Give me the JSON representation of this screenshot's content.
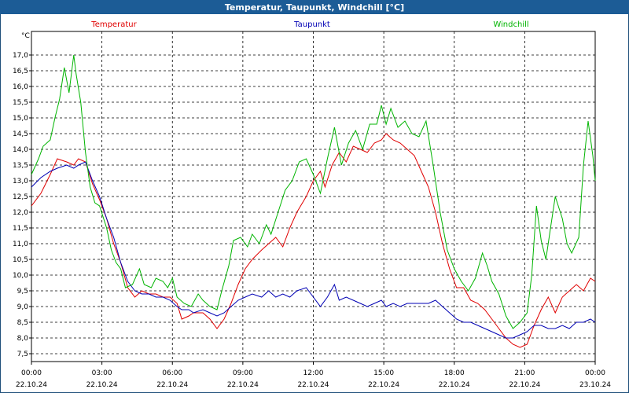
{
  "window": {
    "title": "Temperatur, Taupunkt, Windchill [°C]"
  },
  "chart_data": {
    "type": "line",
    "title": "Temperatur, Taupunkt, Windchill [°C]",
    "ylabel": "°C",
    "ylim": [
      7.25,
      17.75
    ],
    "xlim": [
      0,
      24
    ],
    "grid": true,
    "legend_position": "top",
    "y_ticks": [
      "7,5",
      "8,0",
      "8,5",
      "9,0",
      "9,5",
      "10,0",
      "10,5",
      "11,0",
      "11,5",
      "12,0",
      "12,5",
      "13,0",
      "13,5",
      "14,0",
      "14,5",
      "15,0",
      "15,5",
      "16,0",
      "16,5",
      "17,0"
    ],
    "x_ticks": [
      {
        "h": 0,
        "time": "00:00",
        "date": "22.10.24"
      },
      {
        "h": 3,
        "time": "03:00",
        "date": "22.10.24"
      },
      {
        "h": 6,
        "time": "06:00",
        "date": "22.10.24"
      },
      {
        "h": 9,
        "time": "09:00",
        "date": "22.10.24"
      },
      {
        "h": 12,
        "time": "12:00",
        "date": "22.10.24"
      },
      {
        "h": 15,
        "time": "15:00",
        "date": "22.10.24"
      },
      {
        "h": 18,
        "time": "18:00",
        "date": "22.10.24"
      },
      {
        "h": 21,
        "time": "21:00",
        "date": "22.10.24"
      },
      {
        "h": 24,
        "time": "00:00",
        "date": "23.10.24"
      }
    ],
    "series": [
      {
        "name": "Temperatur",
        "color": "#e00000",
        "points": [
          [
            0,
            12.2
          ],
          [
            0.4,
            12.6
          ],
          [
            0.8,
            13.2
          ],
          [
            1.1,
            13.7
          ],
          [
            1.5,
            13.6
          ],
          [
            1.8,
            13.5
          ],
          [
            2.0,
            13.7
          ],
          [
            2.3,
            13.6
          ],
          [
            2.6,
            12.9
          ],
          [
            2.9,
            12.4
          ],
          [
            3.2,
            11.8
          ],
          [
            3.5,
            11.0
          ],
          [
            3.8,
            10.4
          ],
          [
            4.1,
            9.6
          ],
          [
            4.4,
            9.3
          ],
          [
            4.7,
            9.5
          ],
          [
            5.0,
            9.4
          ],
          [
            5.3,
            9.4
          ],
          [
            5.6,
            9.3
          ],
          [
            5.9,
            9.3
          ],
          [
            6.2,
            9.1
          ],
          [
            6.4,
            8.6
          ],
          [
            6.7,
            8.7
          ],
          [
            6.9,
            8.8
          ],
          [
            7.3,
            8.8
          ],
          [
            7.6,
            8.6
          ],
          [
            7.9,
            8.3
          ],
          [
            8.2,
            8.6
          ],
          [
            8.5,
            9.1
          ],
          [
            8.8,
            9.7
          ],
          [
            9.1,
            10.2
          ],
          [
            9.4,
            10.5
          ],
          [
            9.8,
            10.8
          ],
          [
            10.1,
            11.0
          ],
          [
            10.4,
            11.2
          ],
          [
            10.7,
            10.9
          ],
          [
            11.0,
            11.5
          ],
          [
            11.3,
            12.0
          ],
          [
            11.7,
            12.5
          ],
          [
            12.0,
            13.0
          ],
          [
            12.3,
            13.3
          ],
          [
            12.5,
            12.8
          ],
          [
            12.8,
            13.5
          ],
          [
            13.1,
            13.9
          ],
          [
            13.4,
            13.6
          ],
          [
            13.7,
            14.1
          ],
          [
            14.0,
            14.0
          ],
          [
            14.3,
            13.9
          ],
          [
            14.6,
            14.2
          ],
          [
            14.9,
            14.3
          ],
          [
            15.1,
            14.5
          ],
          [
            15.4,
            14.3
          ],
          [
            15.7,
            14.2
          ],
          [
            16.0,
            14.0
          ],
          [
            16.3,
            13.8
          ],
          [
            16.6,
            13.3
          ],
          [
            16.9,
            12.8
          ],
          [
            17.2,
            12.0
          ],
          [
            17.5,
            11.0
          ],
          [
            17.8,
            10.2
          ],
          [
            18.1,
            9.6
          ],
          [
            18.4,
            9.6
          ],
          [
            18.7,
            9.2
          ],
          [
            19.0,
            9.1
          ],
          [
            19.3,
            8.9
          ],
          [
            19.6,
            8.6
          ],
          [
            19.9,
            8.3
          ],
          [
            20.2,
            8.0
          ],
          [
            20.5,
            7.8
          ],
          [
            20.8,
            7.7
          ],
          [
            21.1,
            7.8
          ],
          [
            21.4,
            8.4
          ],
          [
            21.7,
            8.9
          ],
          [
            22.0,
            9.3
          ],
          [
            22.3,
            8.8
          ],
          [
            22.6,
            9.3
          ],
          [
            22.9,
            9.5
          ],
          [
            23.2,
            9.7
          ],
          [
            23.5,
            9.5
          ],
          [
            23.8,
            9.9
          ],
          [
            24.0,
            9.8
          ]
        ]
      },
      {
        "name": "Taupunkt",
        "color": "#0000b4",
        "points": [
          [
            0,
            12.8
          ],
          [
            0.4,
            13.1
          ],
          [
            0.8,
            13.3
          ],
          [
            1.1,
            13.4
          ],
          [
            1.5,
            13.5
          ],
          [
            1.8,
            13.4
          ],
          [
            2.0,
            13.5
          ],
          [
            2.3,
            13.6
          ],
          [
            2.6,
            13.0
          ],
          [
            2.9,
            12.5
          ],
          [
            3.2,
            11.8
          ],
          [
            3.5,
            11.2
          ],
          [
            3.8,
            10.4
          ],
          [
            4.1,
            9.8
          ],
          [
            4.4,
            9.5
          ],
          [
            4.7,
            9.4
          ],
          [
            5.0,
            9.4
          ],
          [
            5.3,
            9.3
          ],
          [
            5.6,
            9.3
          ],
          [
            5.9,
            9.2
          ],
          [
            6.2,
            9.0
          ],
          [
            6.4,
            8.9
          ],
          [
            6.7,
            8.9
          ],
          [
            6.9,
            8.8
          ],
          [
            7.3,
            8.9
          ],
          [
            7.6,
            8.8
          ],
          [
            7.9,
            8.7
          ],
          [
            8.2,
            8.8
          ],
          [
            8.5,
            9.0
          ],
          [
            8.8,
            9.2
          ],
          [
            9.1,
            9.3
          ],
          [
            9.4,
            9.4
          ],
          [
            9.8,
            9.3
          ],
          [
            10.1,
            9.5
          ],
          [
            10.4,
            9.3
          ],
          [
            10.7,
            9.4
          ],
          [
            11.0,
            9.3
          ],
          [
            11.3,
            9.5
          ],
          [
            11.7,
            9.6
          ],
          [
            12.0,
            9.3
          ],
          [
            12.3,
            9.0
          ],
          [
            12.6,
            9.3
          ],
          [
            12.9,
            9.7
          ],
          [
            13.1,
            9.2
          ],
          [
            13.4,
            9.3
          ],
          [
            13.7,
            9.2
          ],
          [
            14.0,
            9.1
          ],
          [
            14.3,
            9.0
          ],
          [
            14.6,
            9.1
          ],
          [
            14.9,
            9.2
          ],
          [
            15.1,
            9.0
          ],
          [
            15.4,
            9.1
          ],
          [
            15.7,
            9.0
          ],
          [
            16.0,
            9.1
          ],
          [
            16.3,
            9.1
          ],
          [
            16.6,
            9.1
          ],
          [
            16.9,
            9.1
          ],
          [
            17.2,
            9.2
          ],
          [
            17.5,
            9.0
          ],
          [
            17.8,
            8.8
          ],
          [
            18.1,
            8.6
          ],
          [
            18.4,
            8.5
          ],
          [
            18.7,
            8.5
          ],
          [
            19.0,
            8.4
          ],
          [
            19.3,
            8.3
          ],
          [
            19.6,
            8.2
          ],
          [
            19.9,
            8.1
          ],
          [
            20.2,
            8.0
          ],
          [
            20.5,
            8.0
          ],
          [
            20.8,
            8.1
          ],
          [
            21.1,
            8.2
          ],
          [
            21.4,
            8.4
          ],
          [
            21.7,
            8.4
          ],
          [
            22.0,
            8.3
          ],
          [
            22.3,
            8.3
          ],
          [
            22.6,
            8.4
          ],
          [
            22.9,
            8.3
          ],
          [
            23.2,
            8.5
          ],
          [
            23.5,
            8.5
          ],
          [
            23.8,
            8.6
          ],
          [
            24.0,
            8.5
          ]
        ]
      },
      {
        "name": "Windchill",
        "color": "#00b400",
        "points": [
          [
            0,
            13.2
          ],
          [
            0.3,
            13.7
          ],
          [
            0.5,
            14.1
          ],
          [
            0.8,
            14.3
          ],
          [
            1.0,
            15.0
          ],
          [
            1.2,
            15.6
          ],
          [
            1.4,
            16.6
          ],
          [
            1.6,
            15.8
          ],
          [
            1.8,
            17.0
          ],
          [
            1.9,
            16.4
          ],
          [
            2.1,
            15.5
          ],
          [
            2.3,
            13.9
          ],
          [
            2.5,
            12.8
          ],
          [
            2.7,
            12.3
          ],
          [
            2.9,
            12.2
          ],
          [
            3.2,
            11.5
          ],
          [
            3.4,
            10.8
          ],
          [
            3.6,
            10.4
          ],
          [
            3.8,
            10.2
          ],
          [
            4.0,
            9.6
          ],
          [
            4.3,
            9.7
          ],
          [
            4.6,
            10.2
          ],
          [
            4.8,
            9.7
          ],
          [
            5.1,
            9.6
          ],
          [
            5.3,
            9.9
          ],
          [
            5.6,
            9.8
          ],
          [
            5.8,
            9.6
          ],
          [
            6.0,
            9.9
          ],
          [
            6.2,
            9.3
          ],
          [
            6.5,
            9.1
          ],
          [
            6.8,
            9.0
          ],
          [
            7.1,
            9.4
          ],
          [
            7.3,
            9.2
          ],
          [
            7.6,
            9.0
          ],
          [
            7.9,
            8.9
          ],
          [
            8.1,
            9.5
          ],
          [
            8.4,
            10.3
          ],
          [
            8.6,
            11.1
          ],
          [
            8.9,
            11.2
          ],
          [
            9.2,
            10.9
          ],
          [
            9.4,
            11.3
          ],
          [
            9.7,
            11.0
          ],
          [
            10.0,
            11.6
          ],
          [
            10.2,
            11.3
          ],
          [
            10.5,
            12.0
          ],
          [
            10.8,
            12.7
          ],
          [
            11.1,
            13.0
          ],
          [
            11.4,
            13.6
          ],
          [
            11.7,
            13.7
          ],
          [
            12.0,
            13.2
          ],
          [
            12.3,
            12.6
          ],
          [
            12.6,
            13.7
          ],
          [
            12.9,
            14.7
          ],
          [
            13.2,
            13.5
          ],
          [
            13.5,
            14.2
          ],
          [
            13.8,
            14.6
          ],
          [
            14.1,
            14.0
          ],
          [
            14.4,
            14.8
          ],
          [
            14.7,
            14.8
          ],
          [
            14.9,
            15.4
          ],
          [
            15.1,
            14.8
          ],
          [
            15.3,
            15.3
          ],
          [
            15.6,
            14.7
          ],
          [
            15.9,
            14.9
          ],
          [
            16.2,
            14.5
          ],
          [
            16.5,
            14.4
          ],
          [
            16.8,
            14.9
          ],
          [
            17.1,
            13.5
          ],
          [
            17.4,
            12.0
          ],
          [
            17.7,
            10.8
          ],
          [
            18.0,
            10.2
          ],
          [
            18.3,
            9.8
          ],
          [
            18.6,
            9.5
          ],
          [
            18.9,
            9.9
          ],
          [
            19.2,
            10.7
          ],
          [
            19.4,
            10.3
          ],
          [
            19.6,
            9.8
          ],
          [
            19.9,
            9.4
          ],
          [
            20.2,
            8.7
          ],
          [
            20.5,
            8.3
          ],
          [
            20.8,
            8.5
          ],
          [
            21.1,
            8.8
          ],
          [
            21.3,
            10.0
          ],
          [
            21.5,
            12.2
          ],
          [
            21.7,
            11.1
          ],
          [
            21.9,
            10.5
          ],
          [
            22.1,
            11.5
          ],
          [
            22.3,
            12.5
          ],
          [
            22.6,
            11.8
          ],
          [
            22.8,
            11.0
          ],
          [
            23.0,
            10.7
          ],
          [
            23.3,
            11.2
          ],
          [
            23.5,
            13.5
          ],
          [
            23.7,
            14.9
          ],
          [
            23.9,
            13.8
          ],
          [
            24.0,
            13.0
          ]
        ]
      }
    ]
  }
}
